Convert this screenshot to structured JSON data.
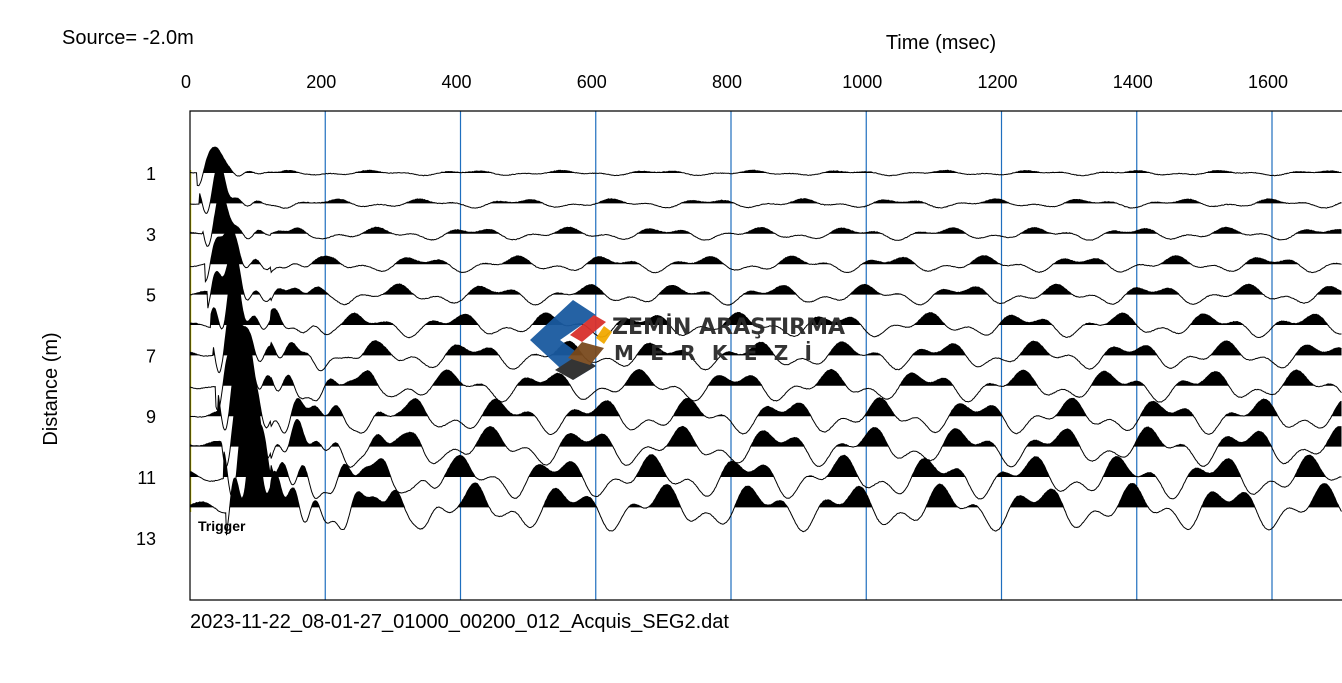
{
  "chart_data": {
    "type": "seismogram",
    "source_label": "Source= -2.0m",
    "xlabel": "Time (msec)",
    "ylabel": "Distance (m)",
    "x_ticks": [
      0,
      200,
      400,
      600,
      800,
      1000,
      1200,
      1400,
      1600
    ],
    "y_ticks": [
      1,
      3,
      5,
      7,
      9,
      11,
      13
    ],
    "xlim": [
      0,
      1700
    ],
    "ylim": [
      -1,
      15
    ],
    "trace_distances": [
      1,
      2,
      3,
      4,
      5,
      6,
      7,
      8,
      9,
      10,
      11,
      12
    ],
    "trigger_label": "Trigger",
    "file_name": "2023-11-22_08-01-27_01000_00200_012_Acquis_SEG2.dat",
    "colors": {
      "grid": "#1f6fbf",
      "trace": "#000000",
      "trigger_line": "#d8d000",
      "frame": "#000000"
    }
  },
  "watermark": {
    "line1": "ZEMİN ARAŞTIRMA",
    "line2": "M E R K E Z İ",
    "colors": [
      "#1a5aa0",
      "#d9302c",
      "#f2a900",
      "#7a4a1e",
      "#2a2a2a"
    ]
  }
}
